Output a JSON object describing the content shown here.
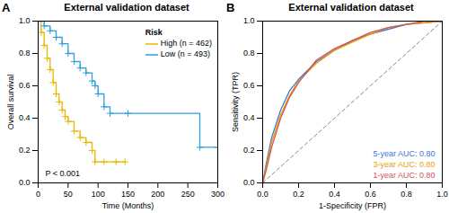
{
  "chart_data": [
    {
      "type": "survival",
      "panel": "A",
      "title": "External validation dataset",
      "x_label": "Time (Months)",
      "y_label": "Overall survival",
      "xlim": [
        0,
        300
      ],
      "xticks": [
        0,
        50,
        100,
        150,
        200,
        250,
        300
      ],
      "ylim": [
        0,
        1
      ],
      "yticks": [
        {
          "value": 0,
          "label": "0.0"
        },
        {
          "value": 0.2,
          "label": "0.2"
        },
        {
          "value": 0.4,
          "label": "0.4"
        },
        {
          "value": 0.6,
          "label": "0.6"
        },
        {
          "value": 0.8,
          "label": "0.8"
        },
        {
          "value": 1,
          "label": "1.0"
        }
      ],
      "legend": "top-right",
      "legend_title": "Risk",
      "annotation": "P < 0.001",
      "marker": "plus",
      "line_style": "step",
      "series": [
        {
          "name": "High (n = 462)",
          "color": "#E7B800",
          "x": [
            0,
            5,
            10,
            15,
            20,
            25,
            30,
            35,
            40,
            45,
            50,
            60,
            70,
            80,
            90,
            95,
            110,
            130,
            145
          ],
          "values": [
            1,
            0.93,
            0.85,
            0.77,
            0.7,
            0.62,
            0.55,
            0.5,
            0.45,
            0.41,
            0.38,
            0.32,
            0.28,
            0.25,
            0.2,
            0.13,
            0.13,
            0.13,
            0.13
          ]
        },
        {
          "name": "Low (n = 493)",
          "color": "#2E9FDF",
          "x": [
            0,
            10,
            20,
            30,
            40,
            50,
            60,
            70,
            80,
            90,
            95,
            100,
            110,
            120,
            150,
            270,
            300
          ],
          "values": [
            1,
            0.97,
            0.94,
            0.9,
            0.86,
            0.8,
            0.75,
            0.71,
            0.68,
            0.63,
            0.6,
            0.55,
            0.47,
            0.43,
            0.43,
            0.22,
            0.22
          ]
        }
      ]
    },
    {
      "type": "roc",
      "panel": "B",
      "title": "External validation dataset",
      "x_label": "1-Specificity (FPR)",
      "y_label": "Sensitivity (TPR)",
      "xlim": [
        0,
        1
      ],
      "xticks": [
        {
          "value": 0,
          "label": "0.0"
        },
        {
          "value": 0.2,
          "label": "0.2"
        },
        {
          "value": 0.4,
          "label": "0.4"
        },
        {
          "value": 0.6,
          "label": "0.6"
        },
        {
          "value": 0.8,
          "label": "0.8"
        },
        {
          "value": 1,
          "label": "1.0"
        }
      ],
      "ylim": [
        0,
        1
      ],
      "yticks": [
        {
          "value": 0,
          "label": "0.0"
        },
        {
          "value": 0.2,
          "label": "0.2"
        },
        {
          "value": 0.4,
          "label": "0.4"
        },
        {
          "value": 0.6,
          "label": "0.6"
        },
        {
          "value": 0.8,
          "label": "0.8"
        },
        {
          "value": 1,
          "label": "1.0"
        }
      ],
      "legend": "bottom-right",
      "series": [
        {
          "name": "5-year AUC: 0.80",
          "color": "#3C78D8",
          "x": [
            0,
            0.02,
            0.05,
            0.1,
            0.15,
            0.2,
            0.3,
            0.4,
            0.5,
            0.6,
            0.7,
            0.8,
            0.9,
            1
          ],
          "values": [
            0,
            0.12,
            0.28,
            0.45,
            0.57,
            0.64,
            0.75,
            0.82,
            0.88,
            0.92,
            0.95,
            0.98,
            0.99,
            1
          ]
        },
        {
          "name": "3-year AUC: 0.80",
          "color": "#E69F00",
          "x": [
            0,
            0.02,
            0.05,
            0.1,
            0.15,
            0.2,
            0.3,
            0.4,
            0.5,
            0.6,
            0.7,
            0.8,
            0.9,
            1
          ],
          "values": [
            0,
            0.1,
            0.25,
            0.42,
            0.54,
            0.63,
            0.74,
            0.82,
            0.87,
            0.92,
            0.96,
            0.98,
            0.99,
            1
          ]
        },
        {
          "name": "1-year AUC: 0.80",
          "color": "#D9534F",
          "x": [
            0,
            0.02,
            0.05,
            0.1,
            0.15,
            0.2,
            0.3,
            0.4,
            0.5,
            0.6,
            0.7,
            0.8,
            0.9,
            1
          ],
          "values": [
            0,
            0.08,
            0.22,
            0.4,
            0.53,
            0.62,
            0.76,
            0.83,
            0.88,
            0.93,
            0.96,
            0.98,
            1,
            1
          ]
        }
      ]
    }
  ]
}
